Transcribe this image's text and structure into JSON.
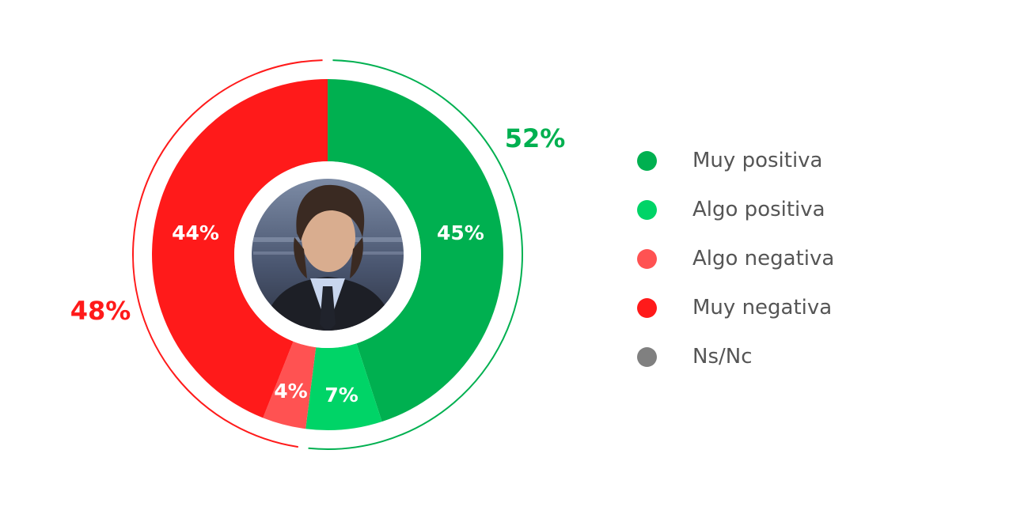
{
  "chart_data": {
    "type": "pie",
    "title": "",
    "legend_position": "right",
    "series": [
      {
        "name": "Muy positiva",
        "value": 45,
        "label": "45%",
        "color": "#00B050"
      },
      {
        "name": "Algo positiva",
        "value": 7,
        "label": "7%",
        "color": "#00D467"
      },
      {
        "name": "Algo negativa",
        "value": 4,
        "label": "4%",
        "color": "#FF5252"
      },
      {
        "name": "Muy negativa",
        "value": 44,
        "label": "44%",
        "color": "#FF1A1A"
      },
      {
        "name": "Ns/Nc",
        "value": 0,
        "label": "",
        "color": "#808080"
      }
    ],
    "groups": [
      {
        "label": "52%",
        "value": 52,
        "color": "#00B050"
      },
      {
        "label": "48%",
        "value": 48,
        "color": "#FF1A1A"
      }
    ]
  },
  "center_image": "portrait-photo"
}
